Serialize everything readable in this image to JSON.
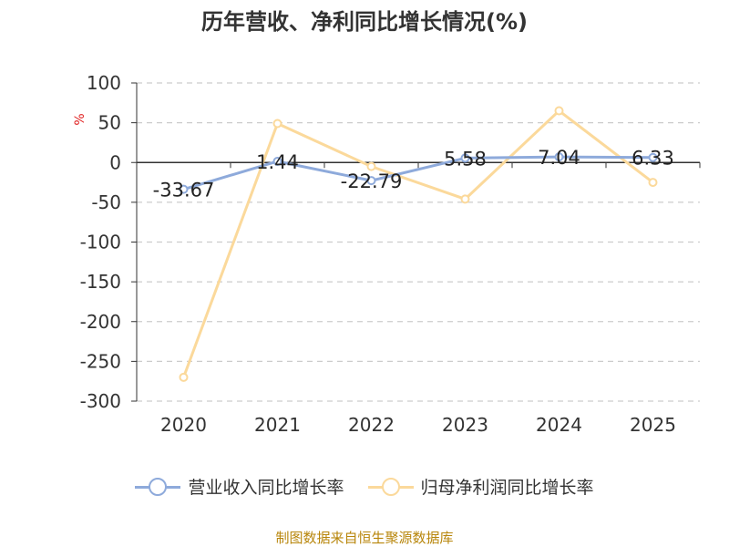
{
  "title": "历年营收、净利同比增长情况(%)",
  "source": "制图数据来自恒生聚源数据库",
  "chart_data": {
    "type": "line",
    "title": "历年营收、净利同比增长情况(%)",
    "ylabel": "%",
    "categories": [
      "2020",
      "2021",
      "2022",
      "2023",
      "2024",
      "2025"
    ],
    "ylim": [
      -300,
      100
    ],
    "yticks": [
      100,
      50,
      0,
      -50,
      -100,
      -150,
      -200,
      -250,
      -300
    ],
    "grid": true,
    "legend_position": "bottom",
    "series": [
      {
        "name": "营业收入同比增长率",
        "color": "#8eaadb",
        "values": [
          -33.67,
          1.44,
          -22.79,
          5.58,
          7.04,
          6.33
        ],
        "labels": [
          "-33.67",
          "1.44",
          "-22.79",
          "5.58",
          "7.04",
          "6.33"
        ]
      },
      {
        "name": "归母净利润同比增长率",
        "color": "#fbd99b",
        "values": [
          -270,
          49,
          -5,
          -46,
          65,
          -25
        ]
      }
    ]
  }
}
